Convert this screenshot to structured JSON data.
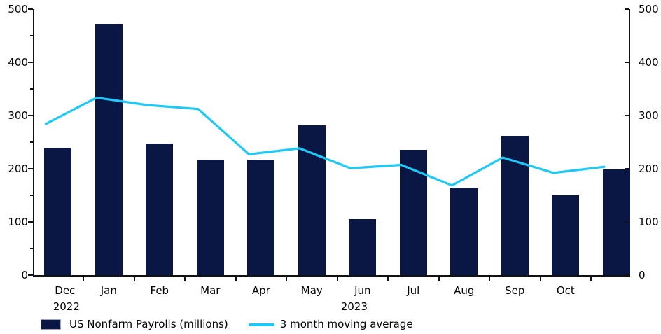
{
  "chart_data": {
    "type": "bar",
    "combo": "bar+line",
    "x_labels": [
      "Dec",
      "Jan",
      "Feb",
      "Mar",
      "Apr",
      "May",
      "Jun",
      "Jul",
      "Aug",
      "Sep",
      "Oct",
      ""
    ],
    "year_labels": [
      {
        "text": "2022",
        "slot": 0
      },
      {
        "text": "2023",
        "slot": 6
      }
    ],
    "series": [
      {
        "name": "US Nonfarm Payrolls (millions)",
        "type": "bar",
        "color": "#0a1644",
        "values": [
          239,
          472,
          248,
          217,
          217,
          281,
          105,
          236,
          165,
          262,
          150,
          199
        ]
      },
      {
        "name": "3 month moving average",
        "type": "line",
        "color": "#1ec8f7",
        "values": [
          284.3,
          333.7,
          319.7,
          312.3,
          227.3,
          238.3,
          201.0,
          207.3,
          168.7,
          221.0,
          192.3,
          203.7
        ]
      }
    ],
    "ylim": [
      0,
      500
    ],
    "y_major_ticks": [
      0,
      100,
      200,
      300,
      400,
      500
    ],
    "y_minor_step": 50,
    "dual_y_axis": true,
    "grid": false,
    "legend_position": "bottom-left"
  },
  "colors": {
    "bar": "#0a1644",
    "line": "#1ec8f7",
    "axis": "#111111",
    "text": "#000000"
  }
}
